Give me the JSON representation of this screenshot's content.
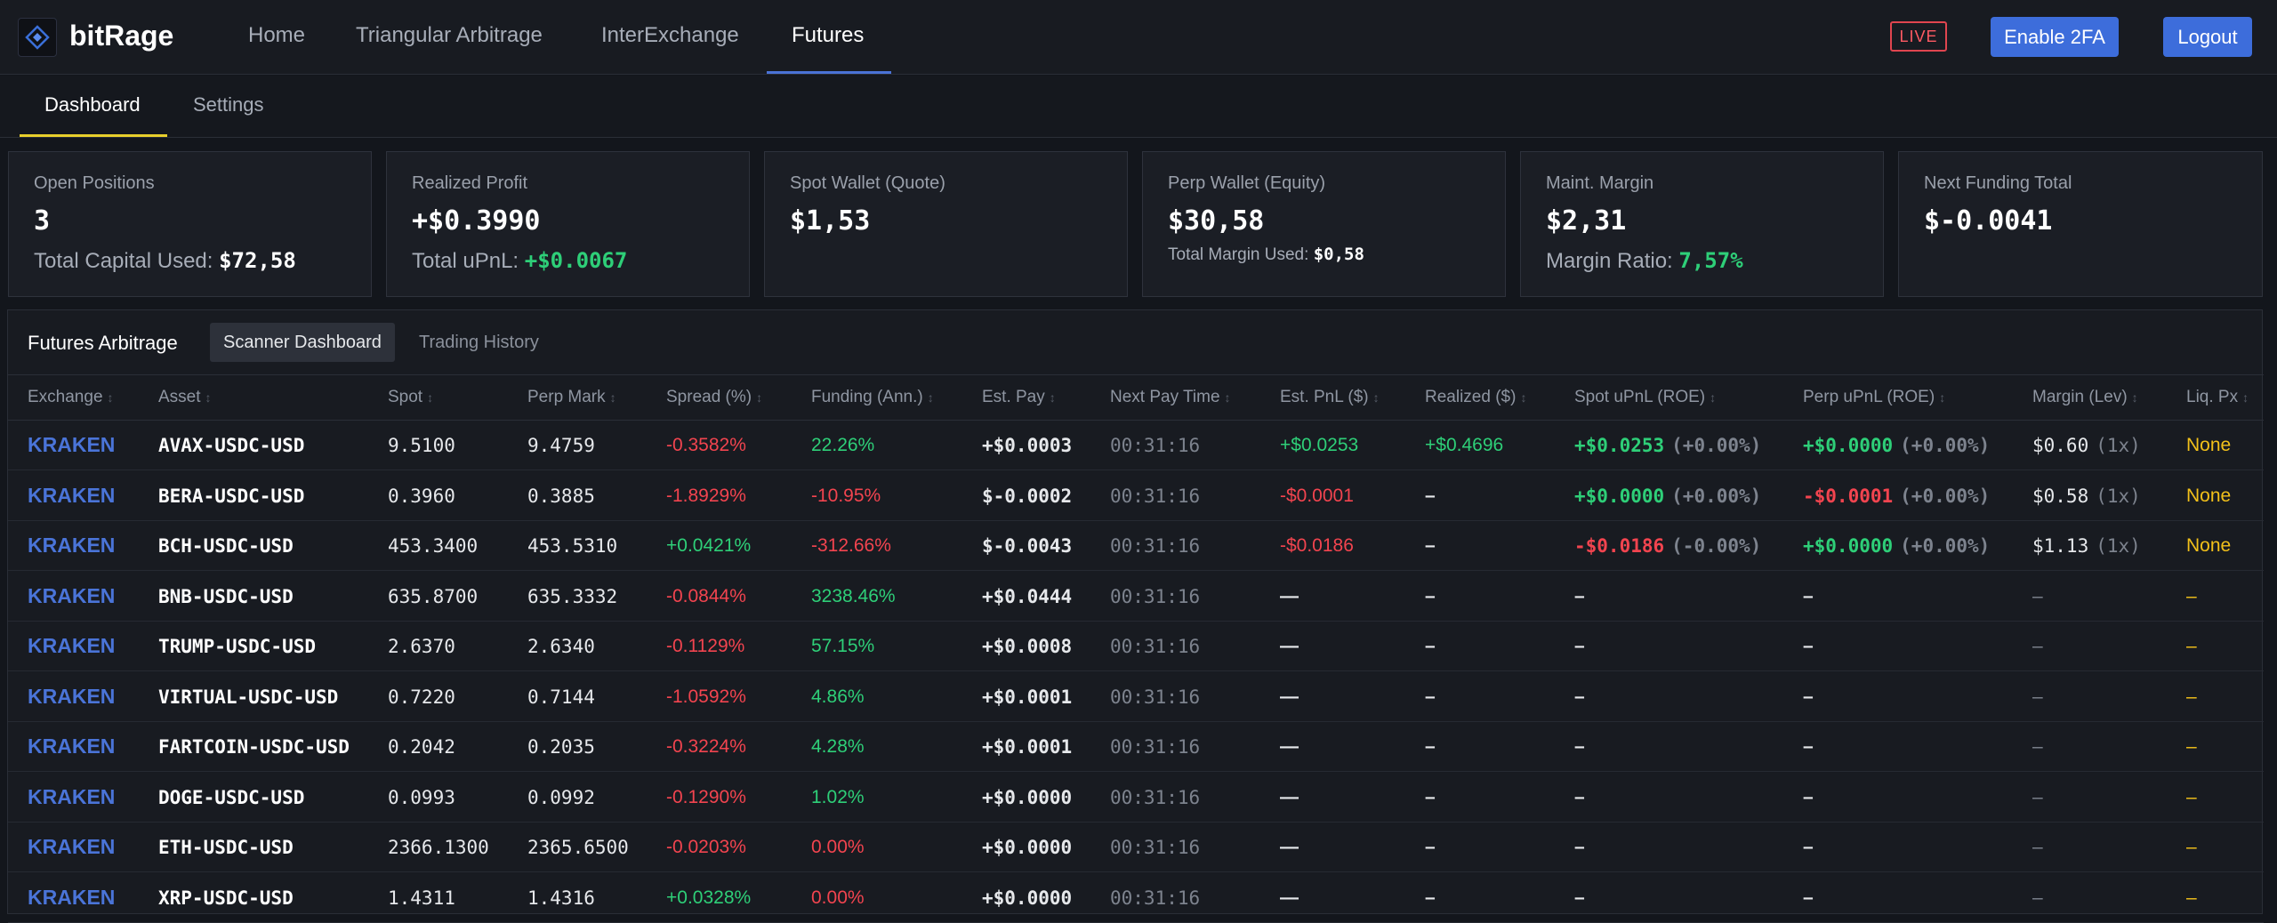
{
  "brand": "bitRage",
  "nav": {
    "home": "Home",
    "tri": "Triangular Arbitrage",
    "inter": "InterExchange",
    "futures": "Futures"
  },
  "live": "LIVE",
  "buttons": {
    "twofa": "Enable 2FA",
    "logout": "Logout"
  },
  "subtabs": {
    "dashboard": "Dashboard",
    "settings": "Settings"
  },
  "cards": {
    "open": {
      "title": "Open Positions",
      "value": "3",
      "sub_label": "Total Capital Used:",
      "sub_value": "$72,58"
    },
    "realized": {
      "title": "Realized Profit",
      "value": "+$0.3990",
      "sub_label": "Total uPnL:",
      "sub_value": "+$0.0067"
    },
    "spot": {
      "title": "Spot Wallet (Quote)",
      "value": "$1,53"
    },
    "perp": {
      "title": "Perp Wallet (Equity)",
      "value": "$30,58",
      "sub_label": "Total Margin Used:",
      "sub_value": "$0,58"
    },
    "maint": {
      "title": "Maint. Margin",
      "value": "$2,31",
      "sub_label": "Margin Ratio:",
      "sub_value": "7,57%"
    },
    "funding": {
      "title": "Next Funding Total",
      "value": "$-0.0041"
    }
  },
  "panel": {
    "title": "Futures Arbitrage",
    "tab_scanner": "Scanner Dashboard",
    "tab_history": "Trading History"
  },
  "columns": [
    "Exchange",
    "Asset",
    "Spot",
    "Perp Mark",
    "Spread (%)",
    "Funding (Ann.)",
    "Est. Pay",
    "Next Pay Time",
    "Est. PnL ($)",
    "Realized ($)",
    "Spot uPnL (ROE)",
    "Perp uPnL (ROE)",
    "Margin (Lev)",
    "Liq. Px"
  ],
  "sort_glyph": "↕",
  "colors": {
    "accent": "#3d6ddb",
    "positive": "#2ecf78",
    "negative": "#f2444f",
    "warning": "#f2c01a",
    "tab_underline": "#e8cf2c"
  },
  "rows": [
    {
      "exchange": "KRAKEN",
      "asset": "AVAX-USDC-USD",
      "spot": "9.5100",
      "perp": "9.4759",
      "spread": "-0.3582%",
      "funding": "22.26%",
      "est_pay": "+$0.0003",
      "next_pay": "00:31:16",
      "est_pnl": "+$0.0253",
      "realized": "+$0.4696",
      "spot_upnl": "+$0.0253",
      "spot_roe": "(+0.00%)",
      "perp_upnl": "+$0.0000",
      "perp_roe": "(+0.00%)",
      "margin": "$0.60",
      "lev": "(1x)",
      "liq": "None"
    },
    {
      "exchange": "KRAKEN",
      "asset": "BERA-USDC-USD",
      "spot": "0.3960",
      "perp": "0.3885",
      "spread": "-1.8929%",
      "funding": "-10.95%",
      "est_pay": "$-0.0002",
      "next_pay": "00:31:16",
      "est_pnl": "-$0.0001",
      "realized": "–",
      "spot_upnl": "+$0.0000",
      "spot_roe": "(+0.00%)",
      "perp_upnl": "-$0.0001",
      "perp_roe": "(+0.00%)",
      "margin": "$0.58",
      "lev": "(1x)",
      "liq": "None"
    },
    {
      "exchange": "KRAKEN",
      "asset": "BCH-USDC-USD",
      "spot": "453.3400",
      "perp": "453.5310",
      "spread": "+0.0421%",
      "funding": "-312.66%",
      "est_pay": "$-0.0043",
      "next_pay": "00:31:16",
      "est_pnl": "-$0.0186",
      "realized": "–",
      "spot_upnl": "-$0.0186",
      "spot_roe": "(-0.00%)",
      "perp_upnl": "+$0.0000",
      "perp_roe": "(+0.00%)",
      "margin": "$1.13",
      "lev": "(1x)",
      "liq": "None"
    },
    {
      "exchange": "KRAKEN",
      "asset": "BNB-USDC-USD",
      "spot": "635.8700",
      "perp": "635.3332",
      "spread": "-0.0844%",
      "funding": "3238.46%",
      "est_pay": "+$0.0444",
      "next_pay": "00:31:16",
      "est_pnl": "—",
      "realized": "–",
      "spot_upnl": "–",
      "spot_roe": "",
      "perp_upnl": "–",
      "perp_roe": "",
      "margin": "–",
      "lev": "",
      "liq": "–"
    },
    {
      "exchange": "KRAKEN",
      "asset": "TRUMP-USDC-USD",
      "spot": "2.6370",
      "perp": "2.6340",
      "spread": "-0.1129%",
      "funding": "57.15%",
      "est_pay": "+$0.0008",
      "next_pay": "00:31:16",
      "est_pnl": "—",
      "realized": "–",
      "spot_upnl": "–",
      "spot_roe": "",
      "perp_upnl": "–",
      "perp_roe": "",
      "margin": "–",
      "lev": "",
      "liq": "–"
    },
    {
      "exchange": "KRAKEN",
      "asset": "VIRTUAL-USDC-USD",
      "spot": "0.7220",
      "perp": "0.7144",
      "spread": "-1.0592%",
      "funding": "4.86%",
      "est_pay": "+$0.0001",
      "next_pay": "00:31:16",
      "est_pnl": "—",
      "realized": "–",
      "spot_upnl": "–",
      "spot_roe": "",
      "perp_upnl": "–",
      "perp_roe": "",
      "margin": "–",
      "lev": "",
      "liq": "–"
    },
    {
      "exchange": "KRAKEN",
      "asset": "FARTCOIN-USDC-USD",
      "spot": "0.2042",
      "perp": "0.2035",
      "spread": "-0.3224%",
      "funding": "4.28%",
      "est_pay": "+$0.0001",
      "next_pay": "00:31:16",
      "est_pnl": "—",
      "realized": "–",
      "spot_upnl": "–",
      "spot_roe": "",
      "perp_upnl": "–",
      "perp_roe": "",
      "margin": "–",
      "lev": "",
      "liq": "–"
    },
    {
      "exchange": "KRAKEN",
      "asset": "DOGE-USDC-USD",
      "spot": "0.0993",
      "perp": "0.0992",
      "spread": "-0.1290%",
      "funding": "1.02%",
      "est_pay": "+$0.0000",
      "next_pay": "00:31:16",
      "est_pnl": "—",
      "realized": "–",
      "spot_upnl": "–",
      "spot_roe": "",
      "perp_upnl": "–",
      "perp_roe": "",
      "margin": "–",
      "lev": "",
      "liq": "–"
    },
    {
      "exchange": "KRAKEN",
      "asset": "ETH-USDC-USD",
      "spot": "2366.1300",
      "perp": "2365.6500",
      "spread": "-0.0203%",
      "funding": "0.00%",
      "est_pay": "+$0.0000",
      "next_pay": "00:31:16",
      "est_pnl": "—",
      "realized": "–",
      "spot_upnl": "–",
      "spot_roe": "",
      "perp_upnl": "–",
      "perp_roe": "",
      "margin": "–",
      "lev": "",
      "liq": "–"
    },
    {
      "exchange": "KRAKEN",
      "asset": "XRP-USDC-USD",
      "spot": "1.4311",
      "perp": "1.4316",
      "spread": "+0.0328%",
      "funding": "0.00%",
      "est_pay": "+$0.0000",
      "next_pay": "00:31:16",
      "est_pnl": "—",
      "realized": "–",
      "spot_upnl": "–",
      "spot_roe": "",
      "perp_upnl": "–",
      "perp_roe": "",
      "margin": "–",
      "lev": "",
      "liq": "–"
    }
  ]
}
